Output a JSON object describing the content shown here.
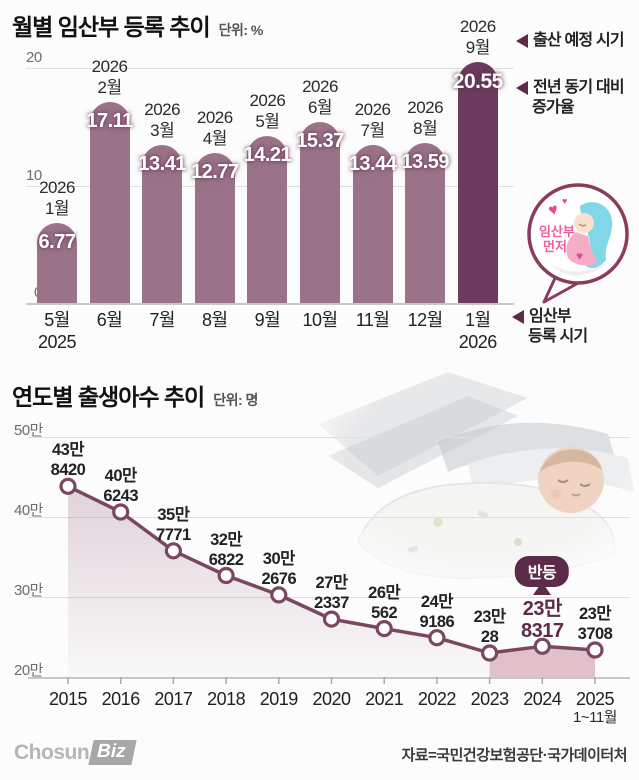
{
  "colors": {
    "bar": "#9b7389",
    "bar_highlight": "#6b3c5f",
    "line": "#7b4760",
    "accent_dark": "#5c2b4a",
    "rebound_fill": "#dcb6c1"
  },
  "chart_data": [
    {
      "type": "bar",
      "title": "월별 임산부 등록 추이",
      "unit_label": "단위: %",
      "categories": [
        "5월 2025",
        "6월",
        "7월",
        "8월",
        "9월",
        "10월",
        "11월",
        "12월",
        "1월 2026"
      ],
      "values": [
        6.77,
        17.11,
        13.41,
        12.77,
        14.21,
        15.37,
        13.44,
        13.59,
        20.55
      ],
      "bar_top_labels": [
        "2026 1월",
        "2026 2월",
        "2026 3월",
        "2026 4월",
        "2026 5월",
        "2026 6월",
        "2026 7월",
        "2026 8월",
        "2026 9월"
      ],
      "y_ticks": [
        "20",
        "10",
        "0"
      ],
      "ylim": [
        0,
        20
      ],
      "highlight_index": 8,
      "annotations": {
        "due_time": "출산 예정 시기",
        "yoy_line1": "전년 동기 대비",
        "yoy_line2": "증가율",
        "reg_line1": "임산부",
        "reg_line2": "등록 시기"
      }
    },
    {
      "type": "line",
      "title": "연도별 출생아수 추이",
      "unit_label": "단위: 명",
      "x": [
        "2015",
        "2016",
        "2017",
        "2018",
        "2019",
        "2020",
        "2021",
        "2022",
        "2023",
        "2024",
        "2025"
      ],
      "x_note": "1~11월",
      "values": [
        438420,
        406243,
        357771,
        326822,
        302676,
        272337,
        260562,
        249186,
        230028,
        238317,
        233708
      ],
      "y_ticks": [
        "50만",
        "40만",
        "30만",
        "20만"
      ],
      "ylim": [
        200000,
        500000
      ],
      "badge": "반등",
      "highlight_index": 9
    }
  ],
  "sticker": {
    "line1": "임산부",
    "line2": "먼저"
  },
  "footer": {
    "logo_part1": "Chosun",
    "logo_part2": "Biz",
    "source": "자료=국민건강보험공단·국가데이터처"
  }
}
